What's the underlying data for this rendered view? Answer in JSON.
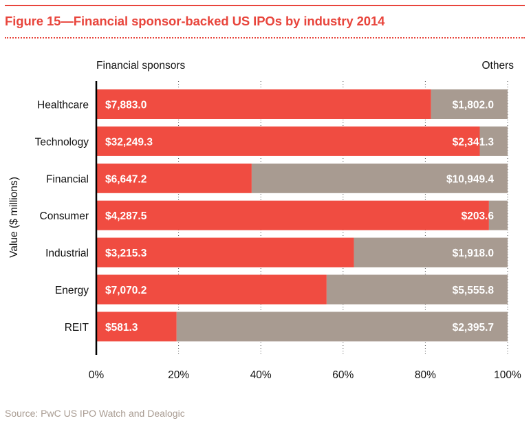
{
  "header": {
    "title": "Figure 15—Financial sponsor-backed US IPOs by industry 2014"
  },
  "footer": {
    "source": "Source: PwC US IPO Watch and Dealogic"
  },
  "colors": {
    "accent": "#e8453c",
    "financial_sponsors": "#f04c41",
    "others": "#a89b91",
    "label_text": "#ffffff",
    "axis_text": "#111111",
    "source_text": "#a89b91"
  },
  "chart_data": {
    "type": "bar",
    "orientation": "horizontal",
    "stacked": true,
    "normalized": true,
    "title": "Figure 15—Financial sponsor-backed US IPOs by industry 2014",
    "xlabel": "",
    "ylabel": "Value ($ millions)",
    "xlim": [
      0,
      100
    ],
    "x_ticks": [
      0,
      20,
      40,
      60,
      80,
      100
    ],
    "x_tick_labels": [
      "0%",
      "20%",
      "40%",
      "60%",
      "80%",
      "100%"
    ],
    "grid": "vertical-dotted",
    "legend": {
      "left": "Financial sponsors",
      "right": "Others",
      "placement": "top"
    },
    "categories": [
      "Healthcare",
      "Technology",
      "Financial",
      "Consumer",
      "Industrial",
      "Energy",
      "REIT"
    ],
    "series": [
      {
        "name": "Financial sponsors",
        "values": [
          7883.0,
          32249.3,
          6647.2,
          4287.5,
          3215.3,
          7070.2,
          581.3
        ],
        "labels": [
          "$7,883.0",
          "$32,249.3",
          "$6,647.2",
          "$4,287.5",
          "$3,215.3",
          "$7,070.2",
          "$581.3"
        ]
      },
      {
        "name": "Others",
        "values": [
          1802.0,
          2341.3,
          10949.4,
          203.6,
          1918.0,
          5555.8,
          2395.7
        ],
        "labels": [
          "$1,802.0",
          "$2,341.3",
          "$10,949.4",
          "$203.6",
          "$1,918.0",
          "$5,555.8",
          "$2,395.7"
        ]
      }
    ]
  }
}
